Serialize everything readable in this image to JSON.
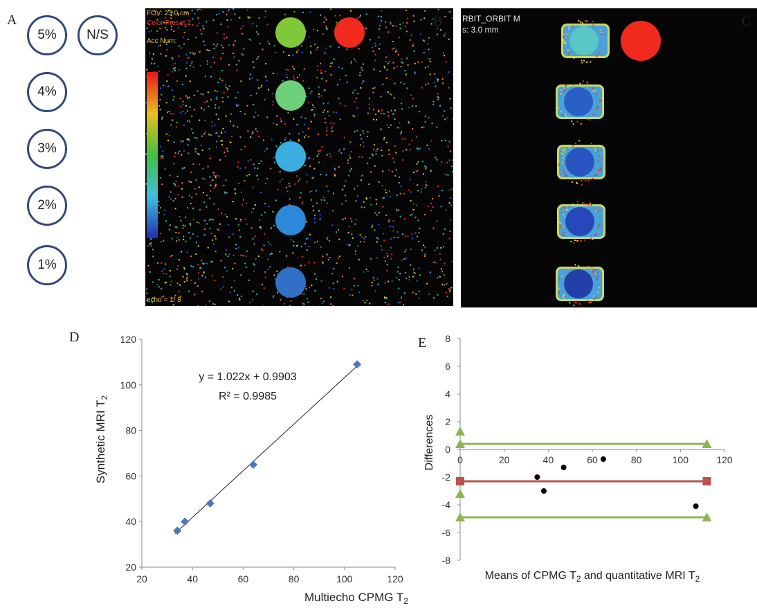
{
  "panel_a": {
    "letter": "A",
    "labels": [
      "5%",
      "N/S",
      "4%",
      "3%",
      "2%",
      "1%"
    ]
  },
  "panel_b": {
    "letter": "B",
    "vial_colors": [
      "#7ec83a",
      "#f02a1c",
      "#6cd07a",
      "#3aaee0",
      "#2c88d8",
      "#3070c8"
    ],
    "overlay_texts": [
      "FOV: 23.0 cm",
      "Color Preset:2",
      "Acc Num:",
      "echo = 1/ 8"
    ]
  },
  "panel_c": {
    "letter": "C",
    "header_line1": "RBIT_ORBIT M",
    "header_line2": "s: 3.0 mm",
    "vial_colors": [
      "#5ac7c7",
      "#f02a1c",
      "#2a5fc6",
      "#2a55c0",
      "#2648b8",
      "#2240a8"
    ]
  },
  "chart_data": [
    {
      "panel": "D",
      "type": "scatter",
      "xlabel": "Multiecho CPMG T",
      "xlabel_sub": "2",
      "ylabel": "Synthetic MRI T",
      "ylabel_sub": "2",
      "xlim": [
        20,
        120
      ],
      "ylim": [
        20,
        120
      ],
      "x_ticks": [
        20,
        40,
        60,
        80,
        100,
        120
      ],
      "y_ticks": [
        20,
        40,
        60,
        80,
        100,
        120
      ],
      "series": [
        {
          "marker": "diamond",
          "color": "#4a78be",
          "x": [
            34,
            37,
            47,
            64,
            105
          ],
          "y": [
            36,
            40,
            48,
            65,
            109
          ]
        }
      ],
      "trendline": {
        "slope": 1.022,
        "intercept": 0.9903,
        "x_range": [
          33,
          105
        ]
      },
      "equation": "y = 1.022x + 0.9903",
      "r2": "R² = 0.9985",
      "grid": false
    },
    {
      "panel": "E",
      "type": "scatter",
      "xlabel": "Means of CPMG T",
      "xlabel_sub": "2",
      "xlabel_mid": " and quantitative MRI T",
      "xlabel_sub2": "2",
      "ylabel": "Differences",
      "xlim": [
        0,
        120
      ],
      "ylim": [
        -8,
        8
      ],
      "x_ticks": [
        0,
        20,
        40,
        60,
        80,
        100,
        120
      ],
      "y_ticks": [
        -8,
        -6,
        -4,
        -2,
        0,
        2,
        4,
        6,
        8
      ],
      "points": {
        "color": "#000000",
        "x": [
          35,
          38,
          47,
          65,
          107
        ],
        "y": [
          -2.0,
          -3.0,
          -1.3,
          -0.7,
          -4.1
        ]
      },
      "lines": [
        {
          "name": "upper",
          "y": 0.4,
          "x": [
            0,
            112
          ],
          "color": "#8db550",
          "marker": "triangle"
        },
        {
          "name": "mean",
          "y": -2.3,
          "x": [
            0,
            112
          ],
          "color": "#c0504d",
          "marker": "square"
        },
        {
          "name": "lower",
          "y": -4.9,
          "x": [
            0,
            112
          ],
          "color": "#8db550",
          "marker": "triangle"
        }
      ],
      "extra_markers": [
        {
          "x": 0,
          "y": 1.3,
          "color": "#8db550",
          "marker": "triangle"
        },
        {
          "x": 0,
          "y": -3.2,
          "color": "#8db550",
          "marker": "triangle"
        }
      ],
      "grid": false
    }
  ]
}
